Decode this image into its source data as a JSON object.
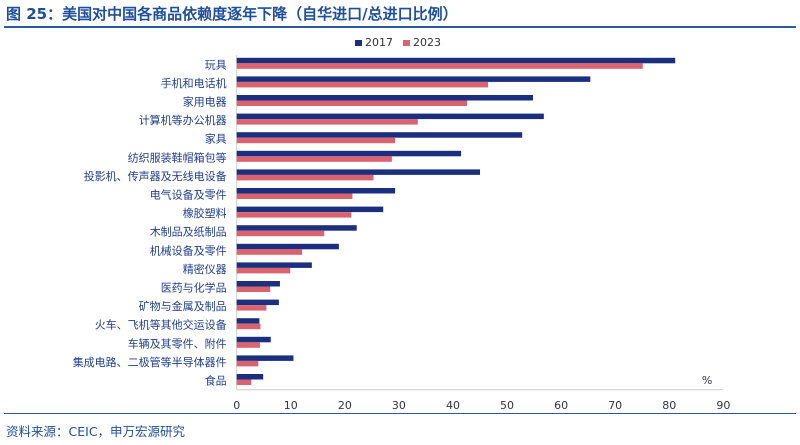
{
  "title": "图 25：美国对中国各商品依赖度逐年下降（自华进口/总进口比例）",
  "source": "资料来源：CEIC，申万宏源研究",
  "chart_data": {
    "type": "bar",
    "orientation": "horizontal",
    "title": "",
    "xlabel": "",
    "unit_label": "%",
    "xlim": [
      0,
      90
    ],
    "xticks": [
      "0",
      "10",
      "20",
      "30",
      "40",
      "50",
      "60",
      "70",
      "80",
      "90"
    ],
    "grid": false,
    "legend_position": "top",
    "categories": [
      "玩具",
      "手机和电话机",
      "家用电器",
      "计算机等办公机器",
      "家具",
      "纺织服装鞋帽箱包等",
      "投影机、传声器及无线电设备",
      "电气设备及零件",
      "橡胶塑料",
      "木制品及纸制品",
      "机械设备及零件",
      "精密仪器",
      "医药与化学品",
      "矿物与金属及制品",
      "火车、飞机等其他交运设备",
      "车辆及其零件、附件",
      "集成电路、二极管等半导体器件",
      "食品"
    ],
    "series": [
      {
        "name": "2017",
        "color": "#1b2f7e",
        "values": [
          81.1,
          65.4,
          54.8,
          56.8,
          52.8,
          41.5,
          45.0,
          29.3,
          27.1,
          22.2,
          18.9,
          13.9,
          8.0,
          7.8,
          4.2,
          6.3,
          10.5,
          4.9
        ]
      },
      {
        "name": "2023",
        "color": "#d9646f",
        "values": [
          75.1,
          46.5,
          42.6,
          33.5,
          29.3,
          28.7,
          25.3,
          21.4,
          21.2,
          16.2,
          12.1,
          9.9,
          6.2,
          5.5,
          4.4,
          4.3,
          4.0,
          2.7
        ]
      }
    ]
  }
}
